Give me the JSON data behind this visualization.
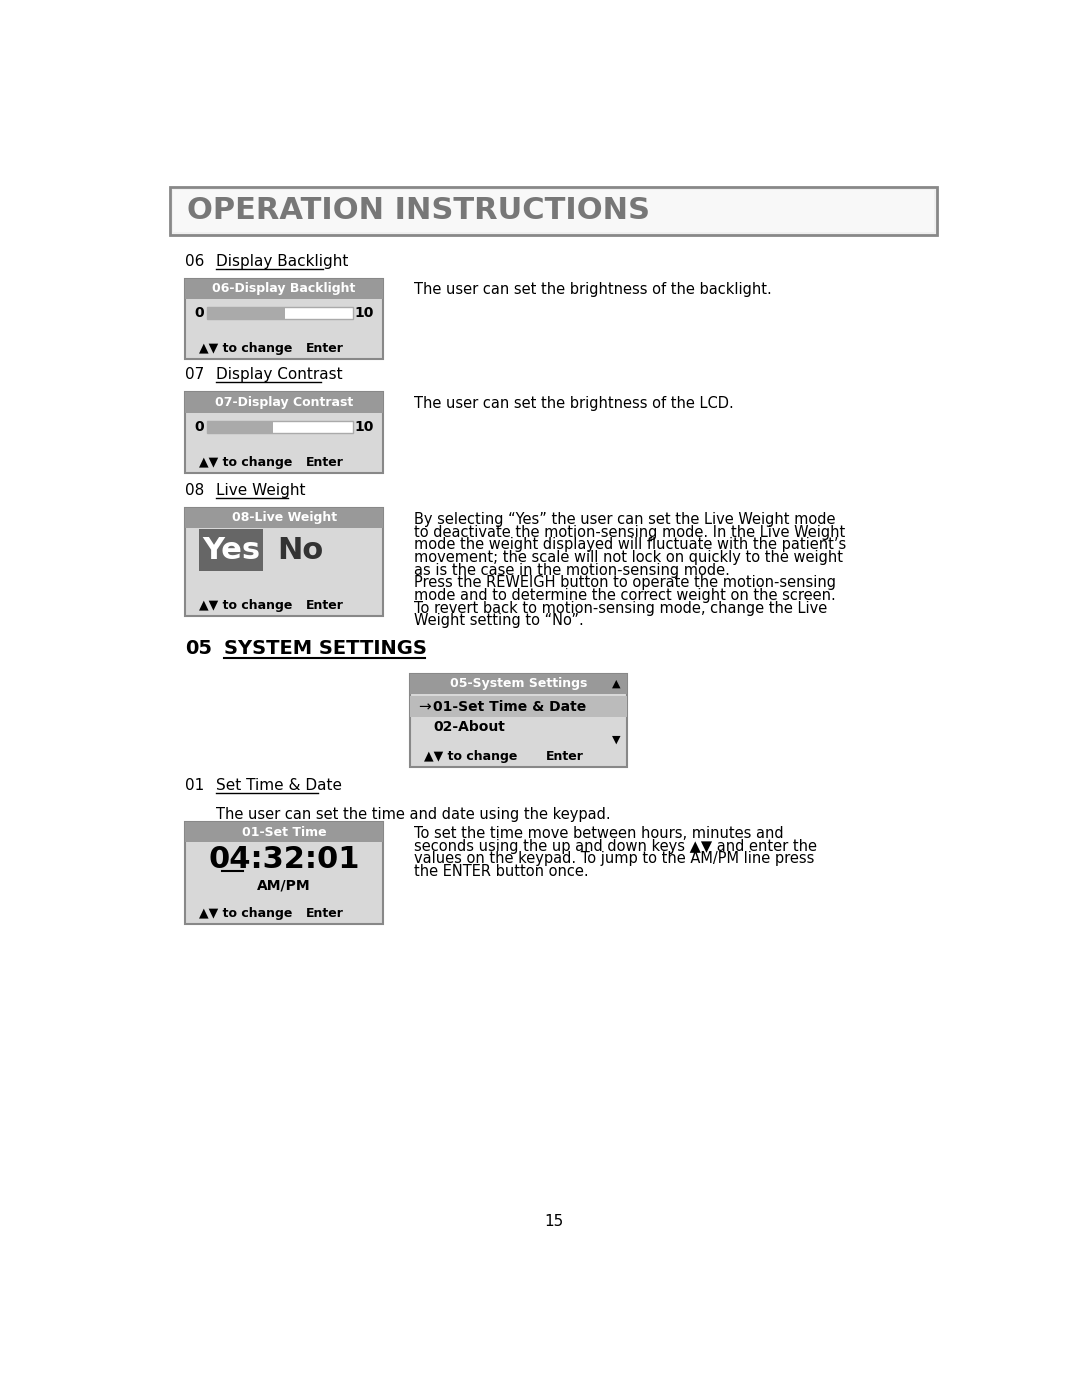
{
  "page_bg": "#ffffff",
  "header_title": "OPERATION INSTRUCTIONS",
  "header_text_color": "#777777",
  "section06_num": "06",
  "section06_label": "Display Backlight",
  "section06_desc": "The user can set the brightness of the backlight.",
  "section07_num": "07",
  "section07_label": "Display Contrast",
  "section07_desc": "The user can set the brightness of the LCD.",
  "section08_num": "08",
  "section08_label": "Live Weight",
  "section08_desc_lines": [
    "By selecting “Yes” the user can set the Live Weight mode",
    "to deactivate the motion-sensing mode. In the Live Weight",
    "mode the weight displayed will fluctuate with the patient’s",
    "movement; the scale will not lock on quickly to the weight",
    "as is the case in the motion-sensing mode.",
    "Press the REWEIGH button to operate the motion-sensing",
    "mode and to determine the correct weight on the screen.",
    "To revert back to motion-sensing mode, change the Live",
    "Weight setting to “No”."
  ],
  "section05_num": "05",
  "section05_label": "SYSTEM SETTINGS",
  "section01_num": "01",
  "section01_label": "Set Time & Date",
  "section01_desc": "The user can set the time and date using the keypad.",
  "section01_sub_desc_lines": [
    "To set the time move between hours, minutes and",
    "seconds using the up and down keys ▲▼ and enter the",
    "values on the keypad. To jump to the AM/PM line press",
    "the ENTER button once."
  ],
  "panel_bg": "#d8d8d8",
  "panel_header_bg": "#999999",
  "panel_header_text": "#ffffff",
  "slider_bg": "#aaaaaa",
  "yes_bg": "#666666",
  "yes_text": "#ffffff",
  "page_number": "15",
  "highlight_row_bg": "#bbbbbb"
}
